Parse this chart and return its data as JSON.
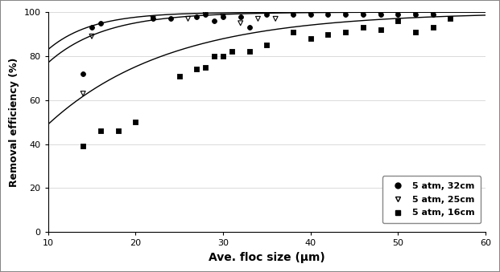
{
  "title": "",
  "xlabel": "Ave. floc size (μm)",
  "ylabel": "Removal efficiency (%)",
  "xlim": [
    10,
    60
  ],
  "ylim": [
    0,
    100
  ],
  "xticks": [
    10,
    20,
    30,
    40,
    50,
    60
  ],
  "yticks": [
    0,
    20,
    40,
    60,
    80,
    100
  ],
  "series_32cm": {
    "label": "5 atm, 32cm",
    "scatter_x": [
      14,
      15,
      16,
      22,
      24,
      27,
      28,
      29,
      30,
      32,
      33,
      35,
      38,
      40,
      42,
      44,
      46,
      48,
      50,
      52,
      54
    ],
    "scatter_y": [
      72,
      93,
      95,
      97,
      97,
      98,
      99,
      96,
      98,
      98,
      93,
      99,
      99,
      99,
      99,
      99,
      99,
      99,
      99,
      99,
      99
    ],
    "marker": "o",
    "color": "black",
    "fillstyle": "full"
  },
  "series_25cm": {
    "label": "5 atm, 25cm",
    "scatter_x": [
      14,
      15,
      22,
      26,
      28,
      30,
      32,
      34,
      36,
      38,
      40,
      42,
      44,
      46,
      48,
      50,
      52,
      54
    ],
    "scatter_y": [
      63,
      89,
      97,
      97,
      99,
      98,
      95,
      97,
      97,
      99,
      99,
      99,
      99,
      99,
      99,
      99,
      99,
      99
    ],
    "marker": "v",
    "color": "black",
    "fillstyle": "none"
  },
  "series_16cm": {
    "label": "5 atm, 16cm",
    "scatter_x": [
      14,
      16,
      18,
      20,
      25,
      27,
      28,
      29,
      30,
      31,
      33,
      35,
      38,
      40,
      42,
      44,
      46,
      48,
      50,
      52,
      54,
      56
    ],
    "scatter_y": [
      39,
      46,
      46,
      50,
      71,
      74,
      75,
      80,
      80,
      82,
      82,
      85,
      91,
      88,
      90,
      91,
      93,
      92,
      96,
      91,
      93,
      97
    ],
    "marker": "s",
    "color": "black",
    "fillstyle": "full"
  },
  "curve_32_y0": 83,
  "curve_32_ymax": 100,
  "curve_32_k": 0.2,
  "curve_25_y0": 77,
  "curve_25_ymax": 100,
  "curve_25_k": 0.155,
  "curve_16_y0": 49,
  "curve_16_ymax": 100,
  "curve_16_k": 0.072,
  "background_color": "#ffffff",
  "border_color": "#aaaaaa",
  "grid_color": "#cccccc",
  "legend_fontsize": 8,
  "axis_fontsize": 10,
  "tick_fontsize": 8,
  "marker_size": 18,
  "line_width": 1.0
}
